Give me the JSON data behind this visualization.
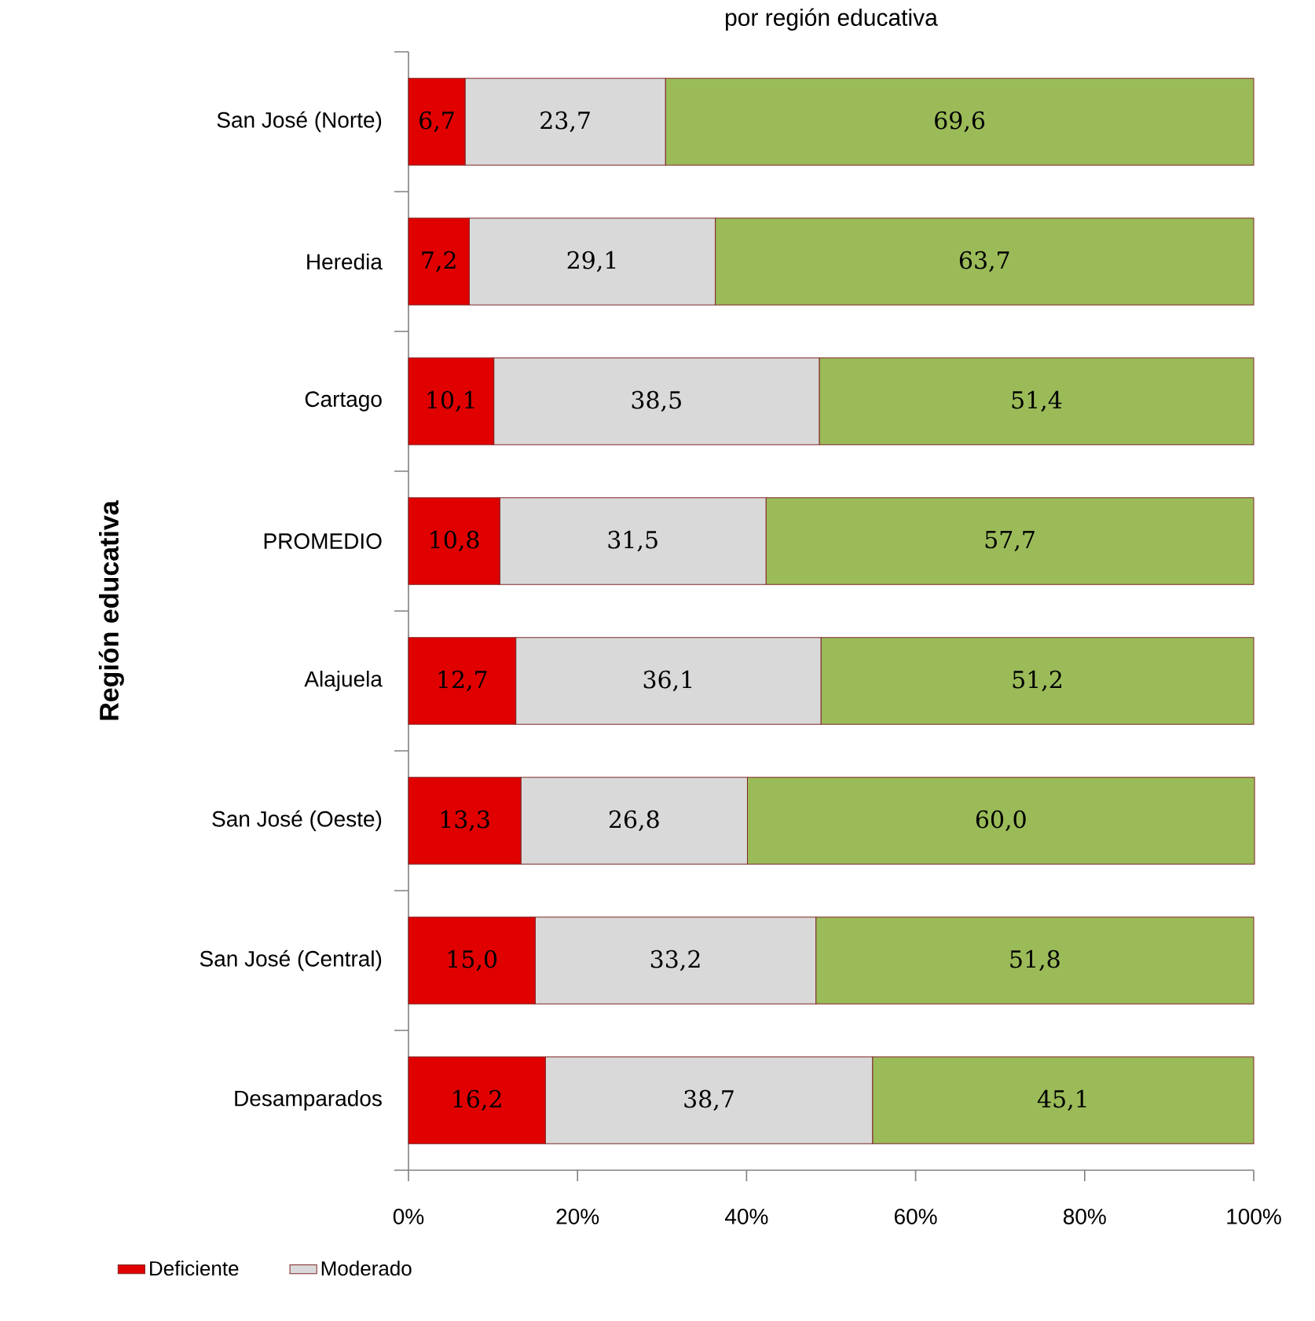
{
  "chart_data": {
    "type": "bar",
    "orientation": "horizontal",
    "stacked": true,
    "title": "por región educativa",
    "ylabel": "Región educativa",
    "categories": [
      "San José (Norte)",
      "Heredia",
      "Cartago",
      "PROMEDIO",
      "Alajuela",
      "San José (Oeste)",
      "San José (Central)",
      "Desamparados"
    ],
    "series": [
      {
        "name": "Deficiente",
        "color": "#e00000",
        "values": [
          6.7,
          7.2,
          10.1,
          10.8,
          12.7,
          13.3,
          15.0,
          16.2
        ],
        "value_labels": [
          "6,7",
          "7,2",
          "10,1",
          "10,8",
          "12,7",
          "13,3",
          "15,0",
          "16,2"
        ]
      },
      {
        "name": "Moderado",
        "color": "#d9d9d9",
        "values": [
          23.7,
          29.1,
          38.5,
          31.5,
          36.1,
          26.8,
          33.2,
          38.7
        ],
        "value_labels": [
          "23,7",
          "29,1",
          "38,5",
          "31,5",
          "36,1",
          "26,8",
          "33,2",
          "38,7"
        ]
      },
      {
        "color": "#9bbb59",
        "values": [
          69.6,
          63.7,
          51.4,
          57.7,
          51.2,
          60.0,
          51.8,
          45.1
        ],
        "value_labels": [
          "69,6",
          "63,7",
          "51,4",
          "57,7",
          "51,2",
          "60,0",
          "51,8",
          "45,1"
        ]
      }
    ],
    "xlim": [
      0,
      100
    ],
    "xticks": [
      {
        "value": 0,
        "label": "0%"
      },
      {
        "value": 20,
        "label": "20%"
      },
      {
        "value": 40,
        "label": "40%"
      },
      {
        "value": 60,
        "label": "60%"
      },
      {
        "value": 80,
        "label": "80%"
      },
      {
        "value": 100,
        "label": "100%"
      }
    ],
    "legend": "bottom",
    "grid": false
  }
}
